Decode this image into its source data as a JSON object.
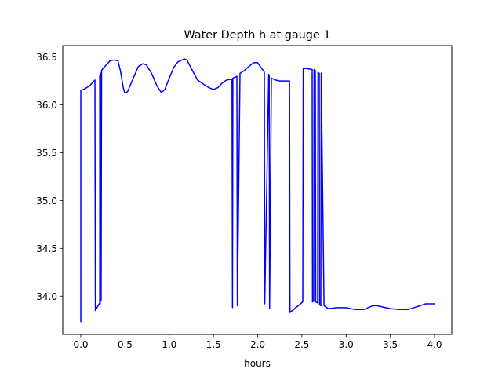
{
  "chart_data": {
    "type": "line",
    "title": "Water Depth h at gauge 1",
    "xlabel": "hours",
    "ylabel": "",
    "xlim": [
      -0.204,
      4.195
    ],
    "ylim": [
      33.6,
      36.62
    ],
    "xticks": [
      0.0,
      0.5,
      1.0,
      1.5,
      2.0,
      2.5,
      3.0,
      3.5,
      4.0
    ],
    "xtick_labels": [
      "0.0",
      "0.5",
      "1.0",
      "1.5",
      "2.0",
      "2.5",
      "3.0",
      "3.5",
      "4.0"
    ],
    "yticks": [
      34.0,
      34.5,
      35.0,
      35.5,
      36.0,
      36.5
    ],
    "ytick_labels": [
      "34.0",
      "34.5",
      "35.0",
      "35.5",
      "36.0",
      "36.5"
    ],
    "grid": false,
    "series": [
      {
        "name": "h",
        "color": "#0000ff",
        "x": [
          0.0,
          0.0,
          0.05,
          0.1,
          0.16,
          0.165,
          0.215,
          0.215,
          0.22,
          0.225,
          0.23,
          0.235,
          0.25,
          0.28,
          0.33,
          0.38,
          0.42,
          0.45,
          0.48,
          0.5,
          0.53,
          0.58,
          0.65,
          0.7,
          0.74,
          0.8,
          0.86,
          0.91,
          0.95,
          1.0,
          1.05,
          1.1,
          1.17,
          1.2,
          1.25,
          1.32,
          1.38,
          1.45,
          1.5,
          1.55,
          1.6,
          1.65,
          1.71,
          1.715,
          1.72,
          1.75,
          1.765,
          1.77,
          1.8,
          1.85,
          1.9,
          1.95,
          2.0,
          2.03,
          2.07,
          2.075,
          2.08,
          2.125,
          2.13,
          2.135,
          2.155,
          2.155,
          2.2,
          2.25,
          2.36,
          2.365,
          2.51,
          2.515,
          2.55,
          2.616,
          2.62,
          2.634,
          2.638,
          2.652,
          2.656,
          2.678,
          2.682,
          2.696,
          2.7,
          2.714,
          2.718,
          2.75,
          2.8,
          2.9,
          3.0,
          3.1,
          3.2,
          3.3,
          3.35,
          3.5,
          3.6,
          3.7,
          3.8,
          3.9,
          4.0
        ],
        "y": [
          33.73,
          36.15,
          36.17,
          36.2,
          36.26,
          33.85,
          33.93,
          36.31,
          33.92,
          36.33,
          33.95,
          36.36,
          36.38,
          36.41,
          36.46,
          36.47,
          36.46,
          36.35,
          36.18,
          36.12,
          36.14,
          36.25,
          36.4,
          36.43,
          36.42,
          36.33,
          36.2,
          36.13,
          36.16,
          36.28,
          36.39,
          36.45,
          36.48,
          36.47,
          36.38,
          36.26,
          36.22,
          36.18,
          36.16,
          36.18,
          36.23,
          36.26,
          36.27,
          33.88,
          36.28,
          36.29,
          36.3,
          33.9,
          36.33,
          36.36,
          36.4,
          36.44,
          36.44,
          36.4,
          36.35,
          36.34,
          33.92,
          36.32,
          36.31,
          33.87,
          36.28,
          36.28,
          36.26,
          36.25,
          36.25,
          33.83,
          33.94,
          36.38,
          36.38,
          36.37,
          33.94,
          33.95,
          36.37,
          36.36,
          33.94,
          33.93,
          36.34,
          36.33,
          33.91,
          33.9,
          36.33,
          33.9,
          33.87,
          33.88,
          33.88,
          33.86,
          33.86,
          33.9,
          33.9,
          33.87,
          33.86,
          33.86,
          33.89,
          33.92,
          33.92
        ]
      }
    ]
  }
}
